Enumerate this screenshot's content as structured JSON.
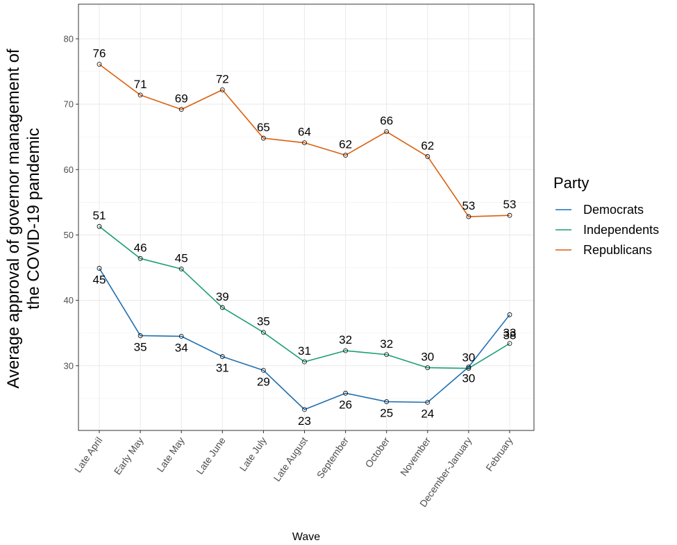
{
  "chart_data": {
    "type": "line",
    "xlabel": "Wave",
    "ylabel": [
      "Average approval of governor management of",
      "the COVID-19 pandemic"
    ],
    "categories": [
      "Late April",
      "Early May",
      "Late May",
      "Late June",
      "Late July",
      "Late August",
      "September",
      "October",
      "November",
      "December-January",
      "February"
    ],
    "ylim": [
      20,
      85
    ],
    "yticks": [
      30,
      40,
      50,
      60,
      70,
      80
    ],
    "grid": true,
    "legend": {
      "title": "Party",
      "position": "right"
    },
    "series": [
      {
        "name": "Democrats",
        "color": "#1f6fb0",
        "values": [
          44.9,
          34.6,
          34.5,
          31.4,
          29.3,
          23.3,
          25.8,
          24.5,
          24.4,
          29.8,
          37.8
        ],
        "labels": [
          "45",
          "35",
          "34",
          "31",
          "29",
          "23",
          "26",
          "25",
          "24",
          "30",
          "38"
        ]
      },
      {
        "name": "Independents",
        "color": "#1a9e77",
        "values": [
          51.3,
          46.4,
          44.8,
          38.9,
          35.1,
          30.6,
          32.3,
          31.7,
          29.7,
          29.6,
          33.4
        ],
        "labels": [
          "51",
          "46",
          "45",
          "39",
          "35",
          "31",
          "32",
          "32",
          "30",
          "30",
          "33"
        ]
      },
      {
        "name": "Republicans",
        "color": "#d95f0e",
        "values": [
          76.1,
          71.4,
          69.2,
          72.2,
          64.8,
          64.1,
          62.2,
          65.8,
          62.0,
          52.8,
          53.0
        ],
        "labels": [
          "76",
          "71",
          "69",
          "72",
          "65",
          "64",
          "62",
          "66",
          "62",
          "53",
          "53"
        ]
      }
    ]
  }
}
